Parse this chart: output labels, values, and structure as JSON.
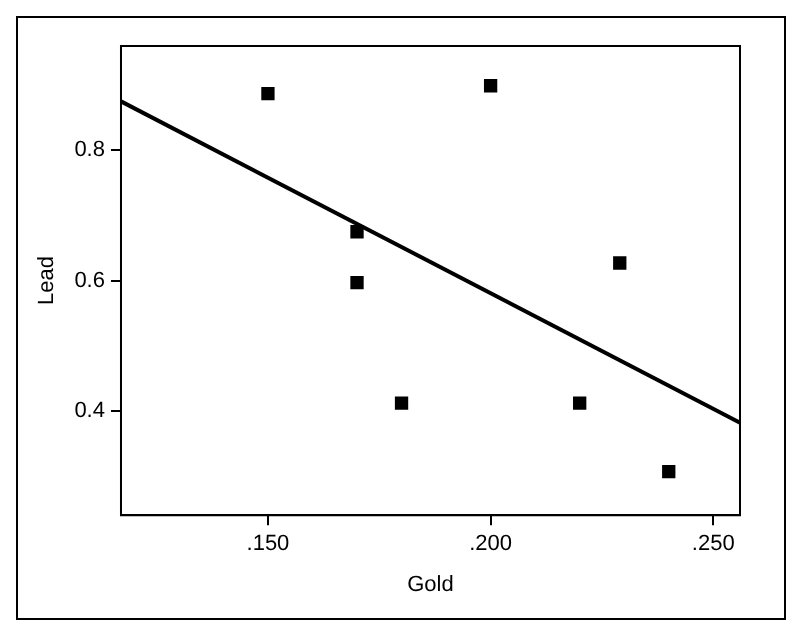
{
  "chart_data": {
    "type": "scatter",
    "xlabel": "Gold",
    "ylabel": "Lead",
    "grid": false,
    "legend": false,
    "xlim": [
      0.117,
      0.256
    ],
    "ylim": [
      0.24,
      0.96
    ],
    "xticks": [
      {
        "value": 0.15,
        "label": ".150"
      },
      {
        "value": 0.2,
        "label": ".200"
      },
      {
        "value": 0.25,
        "label": ".250"
      }
    ],
    "yticks": [
      0.4,
      0.6,
      0.8
    ],
    "series": [
      {
        "marker": "square",
        "color": "#000000",
        "x": [
          0.15,
          0.2,
          0.17,
          0.17,
          0.18,
          0.22,
          0.229,
          0.24
        ],
        "values": [
          0.887,
          0.899,
          0.675,
          0.597,
          0.412,
          0.412,
          0.627,
          0.307
        ]
      },
      {
        "type": "line",
        "marker": "none",
        "color": "#000000",
        "x": [
          0.117,
          0.256
        ],
        "values": [
          0.875,
          0.382
        ]
      }
    ]
  }
}
